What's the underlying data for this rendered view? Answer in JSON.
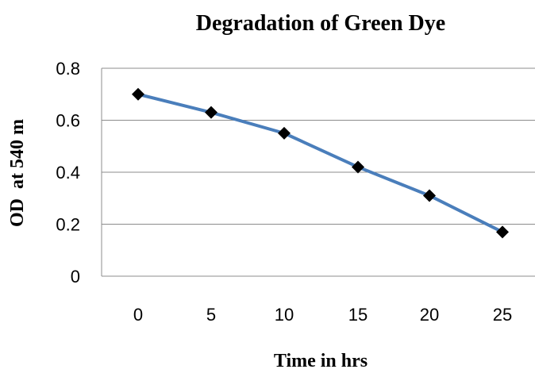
{
  "chart_data": {
    "type": "line",
    "title": "Degradation of Green Dye",
    "xlabel": "Time in hrs",
    "ylabel": "OD  at 540 m",
    "categories": [
      "0",
      "5",
      "10",
      "15",
      "20",
      "25"
    ],
    "series": [
      {
        "values": [
          0.7,
          0.63,
          0.55,
          0.42,
          0.31,
          0.17
        ],
        "color": "#4a7ebb",
        "marker": "diamond",
        "marker_color": "#000000"
      }
    ],
    "ylim": [
      0,
      0.8
    ],
    "yticks": [
      "0",
      "0.2",
      "0.4",
      "0.6",
      "0.8"
    ],
    "grid": true,
    "grid_color": "#8c8c8c",
    "legend": "none"
  }
}
